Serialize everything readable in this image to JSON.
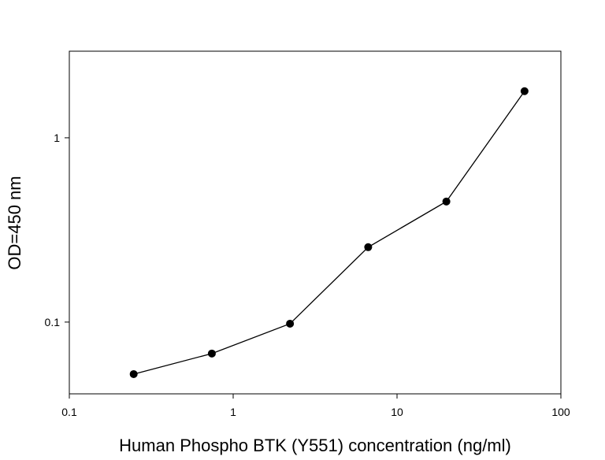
{
  "chart_data": {
    "type": "line",
    "x_label": "Human Phospho BTK (Y551) concentration (ng/ml)",
    "y_label": "OD=450 nm",
    "x": [
      0.247,
      0.741,
      2.222,
      6.667,
      20,
      60
    ],
    "series": [
      {
        "name": "OD",
        "color": "#000000",
        "values": [
          0.0522,
          0.0675,
          0.098,
          0.255,
          0.451,
          1.79
        ]
      }
    ],
    "xscale": "log",
    "yscale": "log",
    "xlim": [
      0.1,
      100
    ],
    "ylim": [
      0.0408,
      2.95
    ],
    "xticks": [
      0.1,
      1,
      10,
      100
    ],
    "yticks": [
      0.1,
      1
    ]
  }
}
